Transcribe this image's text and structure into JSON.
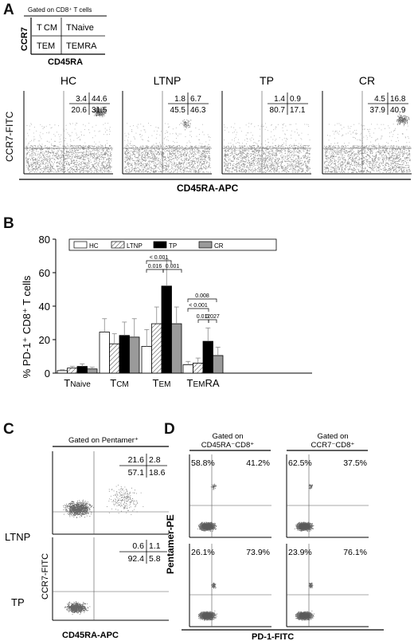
{
  "panels": {
    "A": {
      "letter": "A",
      "key_gating": "Gated on CD8⁺ T cells",
      "key_cells": [
        [
          "T CM",
          "TNaive"
        ],
        [
          "TEM",
          "TEMRA"
        ]
      ],
      "key_ylabel": "CCR7",
      "key_xlabel": "CD45RA",
      "ylabel": "CCR7-FITC",
      "xlabel": "CD45RA-APC",
      "plots": [
        {
          "title": "HC",
          "q": [
            "3.4",
            "44.6",
            "20.6",
            "31.5"
          ]
        },
        {
          "title": "LTNP",
          "q": [
            "1.8",
            "6.7",
            "45.5",
            "46.3"
          ]
        },
        {
          "title": "TP",
          "q": [
            "1.4",
            "0.9",
            "80.7",
            "17.1"
          ]
        },
        {
          "title": "CR",
          "q": [
            "4.5",
            "16.8",
            "37.9",
            "40.9"
          ]
        }
      ]
    },
    "B": {
      "letter": "B"
    },
    "C": {
      "letter": "C",
      "gating": "Gated on Pentamer⁺",
      "ylabel": "CCR7-FITC",
      "xlabel": "CD45RA-APC",
      "rows": [
        {
          "label": "LTNP",
          "q": [
            "21.6",
            "2.8",
            "57.1",
            "18.6"
          ]
        },
        {
          "label": "TP",
          "q": [
            "0.6",
            "1.1",
            "92.4",
            "5.8"
          ]
        }
      ]
    },
    "D": {
      "letter": "D",
      "ylabel": "Pentamer-PE",
      "xlabel": "PD-1-FITC",
      "col_headers": [
        [
          "Gated on",
          "CD45RA⁻CD8⁺"
        ],
        [
          "Gated on",
          "CCR7⁻CD8⁺"
        ]
      ],
      "plots": [
        {
          "q": [
            "58.8%",
            "41.2%"
          ]
        },
        {
          "q": [
            "62.5%",
            "37.5%"
          ]
        },
        {
          "q": [
            "26.1%",
            "73.9%"
          ]
        },
        {
          "q": [
            "23.9%",
            "76.1%"
          ]
        }
      ]
    }
  },
  "chart_data": {
    "type": "bar",
    "ylabel": "% PD-1⁺ CD8⁺ T cells",
    "ylim": [
      0,
      80
    ],
    "yticks": [
      "0",
      "20",
      "40",
      "60",
      "80"
    ],
    "categories": [
      "TNaive",
      "TCM",
      "TEM",
      "TEMRA"
    ],
    "legend_position": "top",
    "series": [
      {
        "name": "HC",
        "values": [
          1.5,
          24.5,
          16,
          5
        ],
        "errors": [
          0.5,
          8,
          10,
          2
        ]
      },
      {
        "name": "LTNP",
        "values": [
          3,
          17.5,
          29.5,
          6
        ],
        "errors": [
          1,
          6,
          10,
          3
        ]
      },
      {
        "name": "TP",
        "values": [
          4,
          22.5,
          52,
          19
        ],
        "errors": [
          1.5,
          8,
          16,
          8
        ]
      },
      {
        "name": "CR",
        "values": [
          2.5,
          21.5,
          29.5,
          10.5
        ],
        "errors": [
          1,
          11,
          10,
          5
        ]
      }
    ],
    "annotations": [
      {
        "text": "< 0.001",
        "group": "TEM"
      },
      {
        "text": "0.016",
        "group": "TEM"
      },
      {
        "text": "0.001",
        "group": "TEM"
      },
      {
        "text": "0.008",
        "group": "TEMRA"
      },
      {
        "text": "< 0.001",
        "group": "TEMRA"
      },
      {
        "text": "0.012",
        "group": "TEMRA"
      },
      {
        "text": "0.027",
        "group": "TEMRA"
      }
    ],
    "colors": {
      "HC": "#ffffff",
      "LTNP": "hatch",
      "TP": "#000000",
      "CR": "#9a9a9a"
    }
  }
}
